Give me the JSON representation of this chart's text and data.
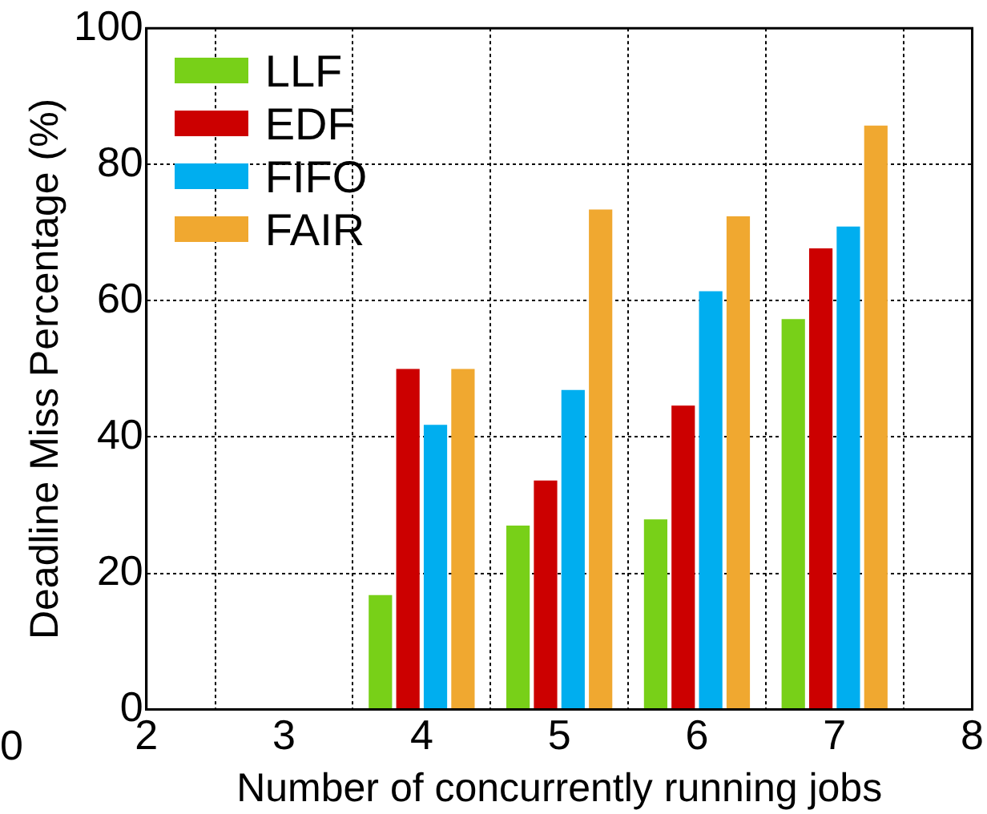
{
  "chart_data": {
    "type": "bar",
    "xlabel": "Number of concurrently running jobs",
    "ylabel": "Deadline Miss Percentage (%)",
    "x": [
      4,
      5,
      6,
      7
    ],
    "series": [
      {
        "name": "LLF",
        "color": "#78d018",
        "values": [
          16.8,
          27,
          27.9,
          57.3
        ]
      },
      {
        "name": "EDF",
        "color": "#cc0000",
        "values": [
          50,
          33.6,
          44.6,
          67.7
        ]
      },
      {
        "name": "FIFO",
        "color": "#00aeef",
        "values": [
          41.8,
          46.9,
          61.4,
          70.9
        ]
      },
      {
        "name": "FAIR",
        "color": "#f0a830",
        "values": [
          50,
          73.4,
          72.4,
          85.7
        ]
      }
    ],
    "xlim": [
      2,
      8
    ],
    "xticks": [
      2,
      3,
      4,
      5,
      6,
      7,
      8
    ],
    "ylim": [
      0,
      100
    ],
    "yticks": [
      0,
      20,
      40,
      60,
      80,
      100
    ],
    "grid": true,
    "legend": "top left",
    "annotations": [
      "0"
    ]
  }
}
